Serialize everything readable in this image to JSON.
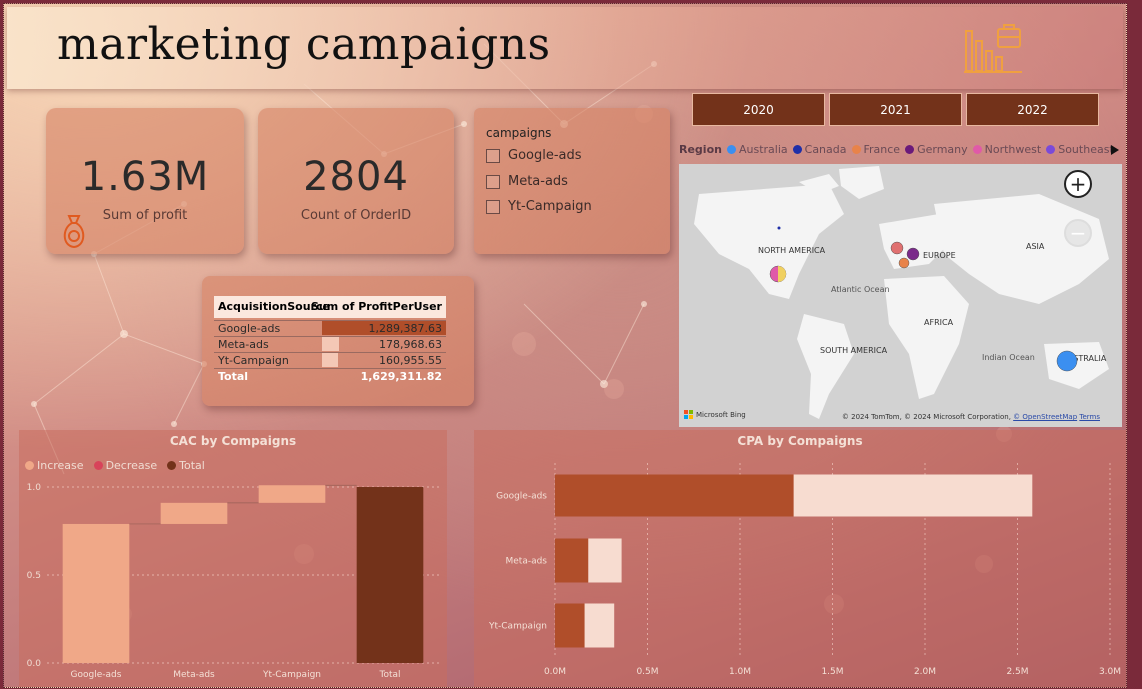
{
  "title": "marketing campaigns",
  "kpis": [
    {
      "value": "1.63M",
      "label": "Sum of profit"
    },
    {
      "value": "2804",
      "label": "Count of OrderID"
    }
  ],
  "slicer": {
    "title": "campaigns",
    "options": [
      "Google-ads",
      "Meta-ads",
      "Yt-Campaign"
    ]
  },
  "years": [
    "2020",
    "2021",
    "2022"
  ],
  "table": {
    "headers": [
      "AcquisitionSource",
      "Sum of ProfitPerUser"
    ],
    "rows": [
      {
        "label": "Google-ads",
        "value": "1,289,387.63",
        "fraction": 1.0
      },
      {
        "label": "Meta-ads",
        "value": "178,968.63",
        "fraction": 0.139
      },
      {
        "label": "Yt-Campaign",
        "value": "160,955.55",
        "fraction": 0.125
      }
    ],
    "total_label": "Total",
    "total_value": "1,629,311.82"
  },
  "map": {
    "legend_title": "Region",
    "legend": [
      {
        "name": "Australia",
        "color": "#3b8ff0"
      },
      {
        "name": "Canada",
        "color": "#1f2fa8"
      },
      {
        "name": "France",
        "color": "#e8834a"
      },
      {
        "name": "Germany",
        "color": "#6a1a7a"
      },
      {
        "name": "Northwest",
        "color": "#e05aa8"
      },
      {
        "name": "Southeast",
        "color": "#7a4ad8"
      }
    ],
    "labels": {
      "north_america": "NORTH AMERICA",
      "europe": "EUROPE",
      "asia": "ASIA",
      "atlantic": "Atlantic Ocean",
      "africa": "AFRICA",
      "south_america": "SOUTH AMERICA",
      "indian": "Indian Ocean",
      "australia": "AUSTRALIA"
    },
    "brand": "Microsoft Bing",
    "copyright": "© 2024 TomTom, © 2024 Microsoft Corporation,",
    "osm_link": "© OpenStreetMap",
    "terms": "Terms"
  },
  "cac_chart": {
    "title": "CAC by Compaigns",
    "legend": [
      {
        "name": "Increase",
        "color": "#f0a888"
      },
      {
        "name": "Decrease",
        "color": "#d8435a"
      },
      {
        "name": "Total",
        "color": "#73321a"
      }
    ]
  },
  "cpa_chart": {
    "title": "CPA by Compaigns"
  },
  "chart_data": [
    {
      "type": "bar",
      "subtype": "waterfall",
      "title": "CAC by Compaigns",
      "categories": [
        "Google-ads",
        "Meta-ads",
        "Yt-Campaign",
        "Total"
      ],
      "values": [
        0.79,
        0.12,
        0.1,
        1.0
      ],
      "kinds": [
        "increase",
        "increase",
        "increase",
        "total"
      ],
      "ylim": [
        0,
        1.0
      ],
      "yticks": [
        "0.0",
        "0.5",
        "1.0"
      ],
      "legend": [
        "Increase",
        "Decrease",
        "Total"
      ],
      "legend_position": "top-left",
      "grid": true
    },
    {
      "type": "bar",
      "orientation": "horizontal",
      "stacked": true,
      "title": "CPA by Compaigns",
      "categories": [
        "Google-ads",
        "Meta-ads",
        "Yt-Campaign"
      ],
      "series": [
        {
          "values": [
            1.29,
            0.18,
            0.16
          ],
          "color": "#b04e2a"
        },
        {
          "values": [
            1.29,
            0.18,
            0.16
          ],
          "color": "#f7dcd0"
        }
      ],
      "xlim": [
        0,
        3.0
      ],
      "xticks": [
        "0.0M",
        "0.5M",
        "1.0M",
        "1.5M",
        "2.0M",
        "2.5M",
        "3.0M"
      ],
      "grid": true
    }
  ]
}
